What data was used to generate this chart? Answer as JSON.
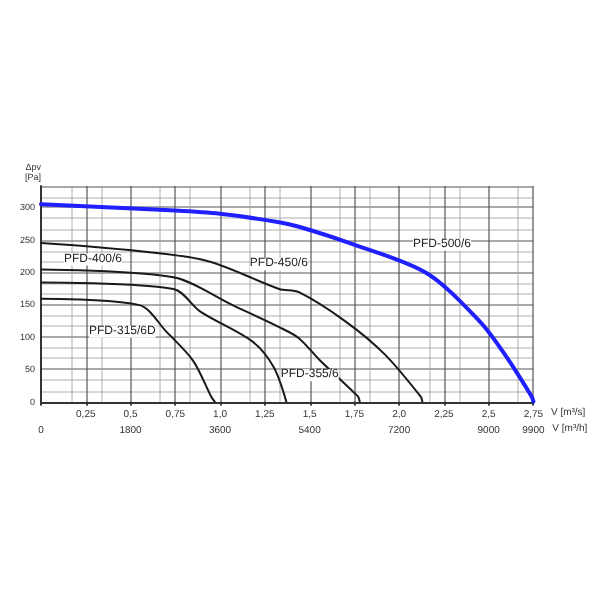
{
  "chart_data": {
    "type": "line",
    "xlabel": "V [m³/s]",
    "x2label": "V [m³/h]",
    "ylabel": "Δpv [Pa]",
    "xlim": [
      0,
      2.75
    ],
    "xticks": [
      {
        "value": 0,
        "label": null
      },
      {
        "value": 0.25,
        "label": "0,25"
      },
      {
        "value": 0.5,
        "label": "0,5"
      },
      {
        "value": 0.75,
        "label": "0,75"
      },
      {
        "value": 1,
        "label": "1,0"
      },
      {
        "value": 1.25,
        "label": "1,25"
      },
      {
        "value": 1.5,
        "label": "1,5"
      },
      {
        "value": 1.75,
        "label": "1,75"
      },
      {
        "value": 2,
        "label": "2,0"
      },
      {
        "value": 2.25,
        "label": "2,25"
      },
      {
        "value": 2.5,
        "label": "2,5"
      },
      {
        "value": 2.75,
        "label": "2,75"
      }
    ],
    "x2lim": [
      0,
      9900
    ],
    "x2ticks": [
      0,
      1800,
      3600,
      5400,
      7200,
      9000,
      9900
    ],
    "ylim": [
      0,
      333
    ],
    "yticks": [
      0,
      50,
      100,
      150,
      200,
      250,
      300
    ],
    "grid": true,
    "legend": false,
    "marker": "none",
    "line_style": "solid",
    "series": [
      {
        "name": "PFD-500/6",
        "color": "#1f1fff",
        "x": [
          0,
          0.75,
          1.0,
          1.33,
          1.44,
          1.7,
          2.15,
          2.45,
          2.59,
          2.74,
          2.75
        ],
        "values": [
          305,
          295,
          290,
          277,
          270,
          247,
          199,
          124,
          73,
          8,
          0
        ]
      },
      {
        "name": "PFD-450/6",
        "color": "#1a1a1a",
        "x": [
          0,
          0.89,
          1.33,
          1.44,
          1.7,
          1.92,
          2.12,
          2.13
        ],
        "values": [
          245,
          220,
          174,
          169,
          124,
          73,
          8,
          0
        ]
      },
      {
        "name": "PFD-400/6",
        "color": "#1a1a1a",
        "x": [
          0,
          0.74,
          1.07,
          1.33,
          1.44,
          1.56,
          1.77,
          1.78
        ],
        "values": [
          204,
          192,
          149,
          115,
          98,
          63,
          8,
          0
        ]
      },
      {
        "name": "PFD-355/6",
        "color": "#1a1a1a",
        "x": [
          0,
          0.74,
          0.89,
          1.18,
          1.3,
          1.37
        ],
        "values": [
          184,
          174,
          139,
          93,
          53,
          0
        ]
      },
      {
        "name": "PFD-315/6D",
        "color": "#1a1a1a",
        "x": [
          0,
          0.55,
          0.7,
          0.85,
          0.95,
          0.97
        ],
        "values": [
          159,
          149,
          108,
          63,
          8,
          0
        ]
      }
    ]
  }
}
